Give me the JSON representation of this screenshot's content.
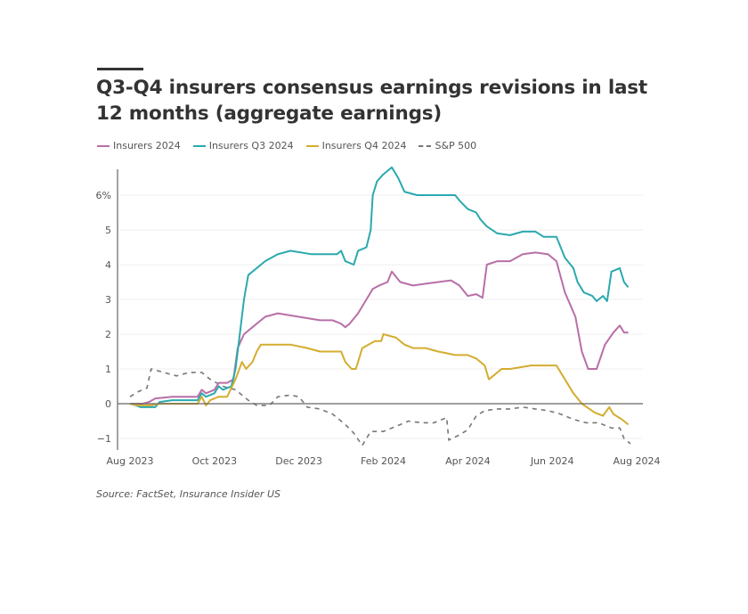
{
  "title": "Q3-Q4 insurers consensus earnings revisions in last 12 months (aggregate earnings)",
  "source": "Source: FactSet, Insurance Insider US",
  "chart_data": {
    "type": "line",
    "title": "Q3-Q4 insurers consensus earnings revisions in last 12 months (aggregate earnings)",
    "xlabel": "",
    "ylabel": "",
    "x_unit": "months since Aug 2023",
    "xlim": [
      0,
      12
    ],
    "ylim": [
      -1.2,
      6.9
    ],
    "grid": true,
    "legend_position": "top-left",
    "x_ticks": [
      {
        "x": 0,
        "label": "Aug 2023"
      },
      {
        "x": 2,
        "label": "Oct 2023"
      },
      {
        "x": 4,
        "label": "Dec 2023"
      },
      {
        "x": 6,
        "label": "Feb 2024"
      },
      {
        "x": 8,
        "label": "Apr 2024"
      },
      {
        "x": 10,
        "label": "Jun 2024"
      },
      {
        "x": 12,
        "label": "Aug 2024"
      }
    ],
    "y_ticks": [
      {
        "y": 6,
        "label": "6%"
      },
      {
        "y": 5,
        "label": "5"
      },
      {
        "y": 4,
        "label": "4"
      },
      {
        "y": 3,
        "label": "3"
      },
      {
        "y": 2,
        "label": "2"
      },
      {
        "y": 1,
        "label": "1"
      },
      {
        "y": 0,
        "label": "0"
      },
      {
        "y": -1,
        "label": "−1"
      }
    ],
    "series": [
      {
        "name": "Insurers 2024",
        "color": "#b86fa7",
        "dashed": false,
        "points": [
          [
            0,
            0
          ],
          [
            0.3,
            0
          ],
          [
            0.45,
            0.05
          ],
          [
            0.6,
            0.15
          ],
          [
            1.0,
            0.2
          ],
          [
            1.6,
            0.2
          ],
          [
            1.7,
            0.4
          ],
          [
            1.8,
            0.3
          ],
          [
            2.0,
            0.4
          ],
          [
            2.1,
            0.6
          ],
          [
            2.3,
            0.6
          ],
          [
            2.45,
            0.7
          ],
          [
            2.55,
            1.6
          ],
          [
            2.7,
            2.0
          ],
          [
            2.9,
            2.2
          ],
          [
            3.2,
            2.5
          ],
          [
            3.5,
            2.6
          ],
          [
            4.0,
            2.5
          ],
          [
            4.5,
            2.4
          ],
          [
            4.8,
            2.4
          ],
          [
            5.0,
            2.3
          ],
          [
            5.1,
            2.2
          ],
          [
            5.2,
            2.3
          ],
          [
            5.4,
            2.6
          ],
          [
            5.6,
            3.0
          ],
          [
            5.75,
            3.3
          ],
          [
            5.9,
            3.4
          ],
          [
            6.1,
            3.5
          ],
          [
            6.2,
            3.8
          ],
          [
            6.4,
            3.5
          ],
          [
            6.7,
            3.4
          ],
          [
            7.0,
            3.45
          ],
          [
            7.3,
            3.5
          ],
          [
            7.6,
            3.55
          ],
          [
            7.8,
            3.4
          ],
          [
            8.0,
            3.1
          ],
          [
            8.2,
            3.15
          ],
          [
            8.35,
            3.05
          ],
          [
            8.45,
            4.0
          ],
          [
            8.7,
            4.1
          ],
          [
            9.0,
            4.1
          ],
          [
            9.3,
            4.3
          ],
          [
            9.6,
            4.35
          ],
          [
            9.9,
            4.3
          ],
          [
            10.1,
            4.1
          ],
          [
            10.3,
            3.2
          ],
          [
            10.55,
            2.5
          ],
          [
            10.7,
            1.5
          ],
          [
            10.85,
            1.0
          ],
          [
            11.05,
            1.0
          ],
          [
            11.25,
            1.7
          ],
          [
            11.45,
            2.05
          ],
          [
            11.6,
            2.25
          ],
          [
            11.7,
            2.05
          ],
          [
            11.8,
            2.05
          ]
        ]
      },
      {
        "name": "Insurers Q3 2024",
        "color": "#2aa9ae",
        "dashed": false,
        "points": [
          [
            0,
            0
          ],
          [
            0.15,
            -0.05
          ],
          [
            0.25,
            -0.1
          ],
          [
            0.6,
            -0.1
          ],
          [
            0.7,
            0.05
          ],
          [
            1.0,
            0.1
          ],
          [
            1.6,
            0.1
          ],
          [
            1.7,
            0.3
          ],
          [
            1.8,
            0.2
          ],
          [
            2.0,
            0.3
          ],
          [
            2.1,
            0.5
          ],
          [
            2.2,
            0.4
          ],
          [
            2.4,
            0.5
          ],
          [
            2.5,
            1.0
          ],
          [
            2.6,
            2.0
          ],
          [
            2.7,
            3.0
          ],
          [
            2.8,
            3.7
          ],
          [
            3.0,
            3.9
          ],
          [
            3.2,
            4.1
          ],
          [
            3.5,
            4.3
          ],
          [
            3.8,
            4.4
          ],
          [
            4.3,
            4.3
          ],
          [
            4.9,
            4.3
          ],
          [
            5.0,
            4.4
          ],
          [
            5.1,
            4.1
          ],
          [
            5.3,
            4.0
          ],
          [
            5.4,
            4.4
          ],
          [
            5.6,
            4.5
          ],
          [
            5.7,
            5.0
          ],
          [
            5.75,
            6.0
          ],
          [
            5.85,
            6.4
          ],
          [
            6.0,
            6.6
          ],
          [
            6.2,
            6.8
          ],
          [
            6.35,
            6.5
          ],
          [
            6.5,
            6.1
          ],
          [
            6.8,
            6.0
          ],
          [
            7.3,
            6.0
          ],
          [
            7.7,
            6.0
          ],
          [
            7.8,
            5.85
          ],
          [
            8.0,
            5.6
          ],
          [
            8.2,
            5.5
          ],
          [
            8.3,
            5.3
          ],
          [
            8.45,
            5.1
          ],
          [
            8.7,
            4.9
          ],
          [
            9.0,
            4.85
          ],
          [
            9.3,
            4.95
          ],
          [
            9.6,
            4.95
          ],
          [
            9.8,
            4.8
          ],
          [
            10.1,
            4.8
          ],
          [
            10.3,
            4.2
          ],
          [
            10.5,
            3.9
          ],
          [
            10.6,
            3.5
          ],
          [
            10.75,
            3.2
          ],
          [
            10.95,
            3.1
          ],
          [
            11.05,
            2.95
          ],
          [
            11.2,
            3.1
          ],
          [
            11.3,
            2.95
          ],
          [
            11.4,
            3.8
          ],
          [
            11.6,
            3.9
          ],
          [
            11.7,
            3.5
          ],
          [
            11.8,
            3.35
          ]
        ]
      },
      {
        "name": "Insurers Q4 2024",
        "color": "#d4ad2f",
        "dashed": false,
        "points": [
          [
            0,
            0
          ],
          [
            0.2,
            -0.05
          ],
          [
            0.5,
            -0.05
          ],
          [
            0.7,
            0
          ],
          [
            1.6,
            0
          ],
          [
            1.7,
            0.2
          ],
          [
            1.8,
            -0.05
          ],
          [
            1.9,
            0.1
          ],
          [
            2.1,
            0.2
          ],
          [
            2.3,
            0.2
          ],
          [
            2.5,
            0.7
          ],
          [
            2.65,
            1.2
          ],
          [
            2.75,
            1.0
          ],
          [
            2.9,
            1.2
          ],
          [
            3.0,
            1.5
          ],
          [
            3.1,
            1.7
          ],
          [
            3.3,
            1.7
          ],
          [
            3.8,
            1.7
          ],
          [
            4.2,
            1.6
          ],
          [
            4.5,
            1.5
          ],
          [
            5.0,
            1.5
          ],
          [
            5.1,
            1.2
          ],
          [
            5.25,
            1.0
          ],
          [
            5.35,
            1.0
          ],
          [
            5.5,
            1.6
          ],
          [
            5.8,
            1.8
          ],
          [
            5.95,
            1.8
          ],
          [
            6.0,
            2.0
          ],
          [
            6.3,
            1.9
          ],
          [
            6.5,
            1.7
          ],
          [
            6.7,
            1.6
          ],
          [
            7.0,
            1.6
          ],
          [
            7.3,
            1.5
          ],
          [
            7.5,
            1.45
          ],
          [
            7.7,
            1.4
          ],
          [
            8.0,
            1.4
          ],
          [
            8.2,
            1.3
          ],
          [
            8.4,
            1.1
          ],
          [
            8.5,
            0.7
          ],
          [
            8.6,
            0.8
          ],
          [
            8.8,
            1.0
          ],
          [
            9.0,
            1.0
          ],
          [
            9.5,
            1.1
          ],
          [
            9.8,
            1.1
          ],
          [
            10.1,
            1.1
          ],
          [
            10.3,
            0.7
          ],
          [
            10.5,
            0.3
          ],
          [
            10.7,
            0.0
          ],
          [
            11.0,
            -0.25
          ],
          [
            11.2,
            -0.35
          ],
          [
            11.35,
            -0.1
          ],
          [
            11.45,
            -0.3
          ],
          [
            11.65,
            -0.45
          ],
          [
            11.8,
            -0.6
          ]
        ]
      },
      {
        "name": "S&P 500",
        "color": "#777777",
        "dashed": true,
        "points": [
          [
            0,
            0.2
          ],
          [
            0.2,
            0.35
          ],
          [
            0.4,
            0.45
          ],
          [
            0.5,
            1.0
          ],
          [
            0.8,
            0.9
          ],
          [
            1.1,
            0.8
          ],
          [
            1.4,
            0.9
          ],
          [
            1.7,
            0.9
          ],
          [
            1.9,
            0.7
          ],
          [
            2.2,
            0.5
          ],
          [
            2.5,
            0.4
          ],
          [
            2.8,
            0.1
          ],
          [
            3.0,
            -0.05
          ],
          [
            3.3,
            -0.05
          ],
          [
            3.5,
            0.2
          ],
          [
            3.8,
            0.25
          ],
          [
            4.0,
            0.2
          ],
          [
            4.2,
            -0.1
          ],
          [
            4.5,
            -0.15
          ],
          [
            4.8,
            -0.3
          ],
          [
            5.1,
            -0.6
          ],
          [
            5.3,
            -0.85
          ],
          [
            5.5,
            -1.2
          ],
          [
            5.7,
            -0.8
          ],
          [
            6.0,
            -0.8
          ],
          [
            6.3,
            -0.65
          ],
          [
            6.6,
            -0.5
          ],
          [
            6.9,
            -0.55
          ],
          [
            7.2,
            -0.55
          ],
          [
            7.5,
            -0.4
          ],
          [
            7.55,
            -1.05
          ],
          [
            7.8,
            -0.9
          ],
          [
            8.0,
            -0.75
          ],
          [
            8.2,
            -0.35
          ],
          [
            8.4,
            -0.2
          ],
          [
            8.7,
            -0.15
          ],
          [
            9.0,
            -0.15
          ],
          [
            9.3,
            -0.1
          ],
          [
            9.6,
            -0.15
          ],
          [
            9.9,
            -0.2
          ],
          [
            10.2,
            -0.3
          ],
          [
            10.5,
            -0.45
          ],
          [
            10.8,
            -0.55
          ],
          [
            11.1,
            -0.55
          ],
          [
            11.4,
            -0.7
          ],
          [
            11.6,
            -0.7
          ],
          [
            11.7,
            -1.0
          ],
          [
            11.85,
            -1.15
          ]
        ]
      }
    ]
  }
}
